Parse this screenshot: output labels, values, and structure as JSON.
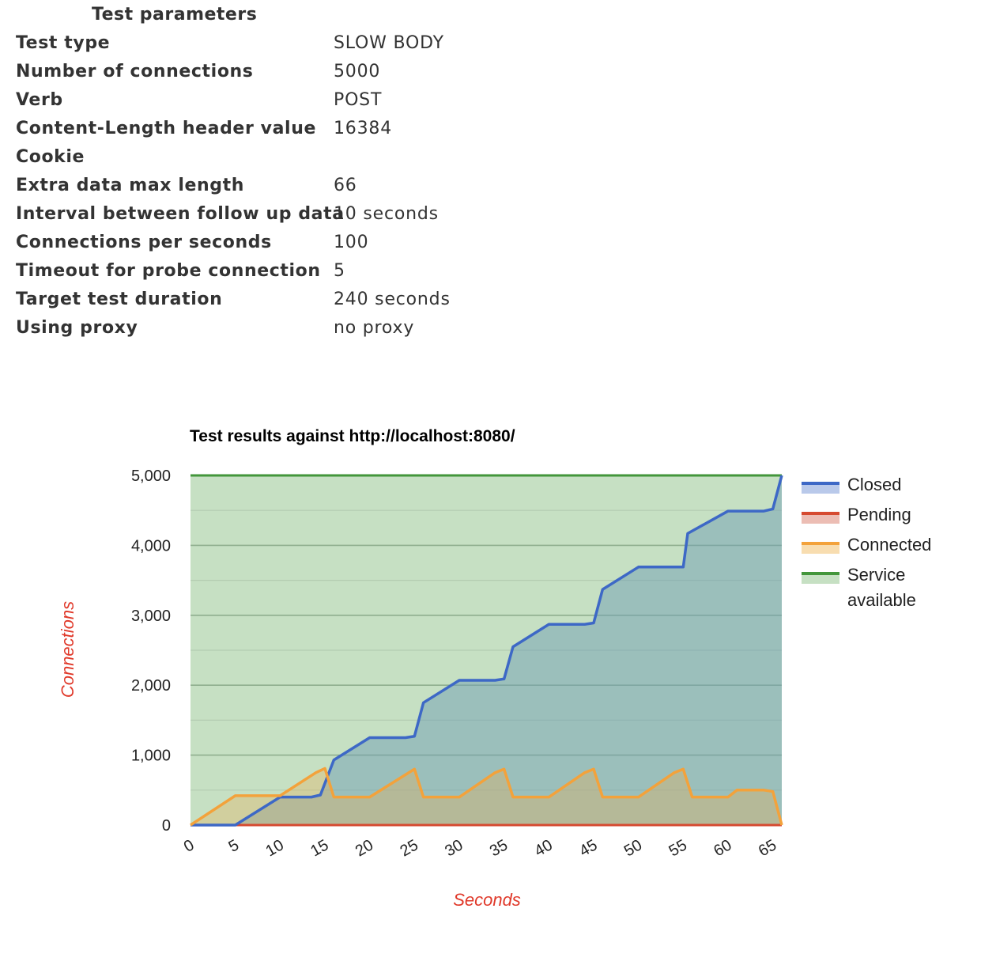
{
  "parameters": {
    "title": "Test parameters",
    "rows": [
      {
        "label": "Test type",
        "value": "SLOW BODY"
      },
      {
        "label": "Number of connections",
        "value": "5000"
      },
      {
        "label": "Verb",
        "value": "POST"
      },
      {
        "label": "Content-Length header value",
        "value": "16384"
      },
      {
        "label": "Cookie",
        "value": ""
      },
      {
        "label": "Extra data max length",
        "value": "66"
      },
      {
        "label": "Interval between follow up data",
        "value": "10 seconds"
      },
      {
        "label": "Connections per seconds",
        "value": "100"
      },
      {
        "label": "Timeout for probe connection",
        "value": "5"
      },
      {
        "label": "Target test duration",
        "value": "240 seconds"
      },
      {
        "label": "Using proxy",
        "value": "no proxy"
      }
    ]
  },
  "chart_data": {
    "type": "area",
    "title": "Test results against http://localhost:8080/",
    "xlabel": "Seconds",
    "ylabel": "Connections",
    "xlim": [
      0,
      66
    ],
    "ylim": [
      0,
      5000
    ],
    "xticks": [
      0,
      5,
      10,
      15,
      20,
      25,
      30,
      35,
      40,
      45,
      50,
      55,
      60,
      65
    ],
    "xtick_labels": [
      "0",
      "5",
      "10",
      "15",
      "20",
      "25",
      "30",
      "35",
      "40",
      "45",
      "50",
      "55",
      "60",
      "65"
    ],
    "yticks": [
      0,
      1000,
      2000,
      3000,
      4000,
      5000
    ],
    "ytick_labels": [
      "0",
      "1,000",
      "2,000",
      "3,000",
      "4,000",
      "5,000"
    ],
    "grid": true,
    "legend_position": "right",
    "series": [
      {
        "name": "Closed",
        "color": "#3d68c6",
        "fill": "#b9c9ea",
        "x": [
          0,
          5,
          10,
          13.5,
          14.5,
          16,
          20,
          24,
          25,
          26,
          30,
          34,
          35,
          36,
          40,
          44,
          45,
          46,
          50,
          55,
          55.5,
          60,
          64,
          65,
          66
        ],
        "y": [
          0,
          0,
          400,
          400,
          430,
          930,
          1250,
          1250,
          1270,
          1750,
          2070,
          2070,
          2090,
          2550,
          2870,
          2870,
          2890,
          3370,
          3690,
          3690,
          4170,
          4490,
          4490,
          4520,
          5000
        ]
      },
      {
        "name": "Pending",
        "color": "#d64a30",
        "fill": "#ecbdb4",
        "x": [
          0,
          66
        ],
        "y": [
          0,
          0
        ]
      },
      {
        "name": "Connected",
        "color": "#f3a23b",
        "fill": "#f8ddb0",
        "x": [
          0,
          5,
          10,
          14,
          15,
          16,
          20,
          25,
          26,
          30,
          34,
          35,
          36,
          40,
          44,
          45,
          46,
          50,
          54,
          55,
          56,
          60,
          61,
          64,
          65,
          66
        ],
        "y": [
          0,
          420,
          420,
          750,
          810,
          400,
          400,
          800,
          400,
          400,
          750,
          800,
          400,
          400,
          750,
          800,
          400,
          400,
          750,
          800,
          400,
          400,
          500,
          500,
          480,
          0
        ]
      },
      {
        "name": "Service available",
        "color": "#43963b",
        "fill": "#c6e0c3",
        "x": [
          0,
          66
        ],
        "y": [
          5000,
          5000
        ]
      }
    ]
  }
}
